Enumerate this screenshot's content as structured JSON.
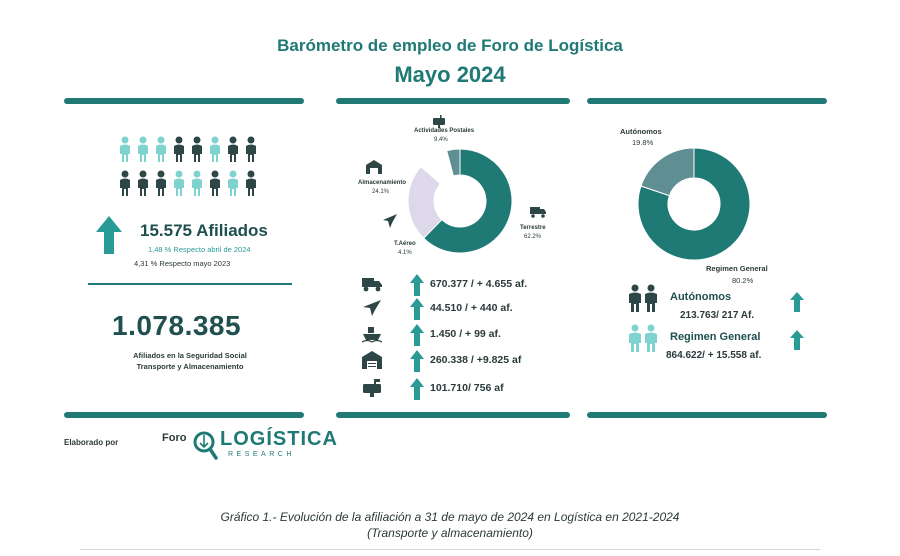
{
  "header": {
    "title": "Barómetro de empleo de Foro de Logística",
    "subtitle": "Mayo 2024"
  },
  "left_panel": {
    "afiliados_value": "15.575 Afiliados",
    "afiliados_change_1": "1,48 % Respecto abril de 2024",
    "afiliados_change_2": "4,31  % Respecto  mayo 2023",
    "total_value": "1.078.385",
    "total_caption_1": "Afiliados en la Seguridad Social",
    "total_caption_2": "Transporte y Almacenamiento"
  },
  "middle_panel": {
    "modes": [
      {
        "icon": "truck-icon",
        "value": "670.377 / + 4.655 af."
      },
      {
        "icon": "airplane-icon",
        "value": "44.510 / + 440 af."
      },
      {
        "icon": "ship-icon",
        "value": "1.450 / + 99 af."
      },
      {
        "icon": "warehouse-icon",
        "value": "260.338 / +9.825 af"
      },
      {
        "icon": "mailbox-icon",
        "value": "101.710/ 756  af"
      }
    ]
  },
  "right_panel": {
    "autonomos_title": "Autónomos",
    "autonomos_value": "213.763/ 217 Af.",
    "regimen_title": "Regimen General",
    "regimen_value": "864.622/ +  15.558 af."
  },
  "footer": {
    "elaborado": "Elaborado por",
    "logo_foro": "Foro",
    "logo_word": "LOGÍSTICA",
    "logo_research": "RESEARCH",
    "caption_1": "Gráfico 1.- Evolución de la afiliación a 31 de mayo de 2024 en Logística en 2021-2024",
    "caption_2": "(Transporte y almacenamiento)"
  },
  "colors": {
    "dark_teal": "#1f7a76",
    "light_teal": "#7fd3cf",
    "slate": "#5f8f93",
    "lavender": "#ddd8ea",
    "dark_figure": "#2e4646"
  },
  "chart_data": [
    {
      "type": "pie",
      "title": "",
      "categories": [
        "Terrestre",
        "Almacenamiento",
        "Actividades Postales",
        "T.Aéreo"
      ],
      "values": [
        62.2,
        24.1,
        9.4,
        4.1
      ],
      "value_labels": [
        "62.2%",
        "24.1%",
        "9.4%",
        "4.1%"
      ],
      "colors": [
        "#1f7a76",
        "#ddd8ea",
        "#ffffff",
        "#5f8f93"
      ],
      "donut": true
    },
    {
      "type": "pie",
      "title": "",
      "categories": [
        "Regimen General",
        "Autónomos"
      ],
      "values": [
        80.2,
        19.8
      ],
      "value_labels": [
        "80.2%",
        "19.8%"
      ],
      "colors": [
        "#1f7a76",
        "#5f8f93"
      ],
      "donut": true
    }
  ]
}
